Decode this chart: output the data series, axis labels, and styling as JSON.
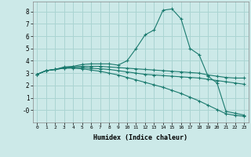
{
  "xlabel": "Humidex (Indice chaleur)",
  "xlim": [
    -0.5,
    23.5
  ],
  "ylim": [
    -1.0,
    8.8
  ],
  "yticks": [
    0,
    1,
    2,
    3,
    4,
    5,
    6,
    7,
    8
  ],
  "ytick_labels": [
    "-0",
    "1",
    "2",
    "3",
    "4",
    "5",
    "6",
    "7",
    "8"
  ],
  "xticks": [
    0,
    1,
    2,
    3,
    4,
    5,
    6,
    7,
    8,
    9,
    10,
    11,
    12,
    13,
    14,
    15,
    16,
    17,
    18,
    19,
    20,
    21,
    22,
    23
  ],
  "bg_color": "#cce9e8",
  "grid_color": "#aad4d2",
  "line_color": "#1a7a6e",
  "lines": [
    {
      "x": [
        0,
        1,
        2,
        3,
        4,
        5,
        6,
        7,
        8,
        9,
        10,
        11,
        12,
        13,
        14,
        15,
        16,
        17,
        18,
        19,
        20,
        21,
        22,
        23
      ],
      "y": [
        2.9,
        3.2,
        3.3,
        3.5,
        3.55,
        3.7,
        3.75,
        3.75,
        3.75,
        3.65,
        4.0,
        5.0,
        6.1,
        6.5,
        8.1,
        8.2,
        7.4,
        5.0,
        4.5,
        2.75,
        2.2,
        -0.1,
        -0.25,
        -0.4
      ]
    },
    {
      "x": [
        0,
        1,
        2,
        3,
        4,
        5,
        6,
        7,
        8,
        9,
        10,
        11,
        12,
        13,
        14,
        15,
        16,
        17,
        18,
        19,
        20,
        21,
        22,
        23
      ],
      "y": [
        2.9,
        3.2,
        3.3,
        3.45,
        3.5,
        3.55,
        3.55,
        3.55,
        3.5,
        3.45,
        3.4,
        3.35,
        3.3,
        3.25,
        3.2,
        3.15,
        3.1,
        3.05,
        3.0,
        2.85,
        2.75,
        2.65,
        2.6,
        2.6
      ]
    },
    {
      "x": [
        0,
        1,
        2,
        3,
        4,
        5,
        6,
        7,
        8,
        9,
        10,
        11,
        12,
        13,
        14,
        15,
        16,
        17,
        18,
        19,
        20,
        21,
        22,
        23
      ],
      "y": [
        2.9,
        3.2,
        3.3,
        3.4,
        3.45,
        3.45,
        3.4,
        3.35,
        3.3,
        3.2,
        3.1,
        3.0,
        2.9,
        2.85,
        2.8,
        2.75,
        2.7,
        2.65,
        2.6,
        2.5,
        2.4,
        2.3,
        2.2,
        2.1
      ]
    },
    {
      "x": [
        0,
        1,
        2,
        3,
        4,
        5,
        6,
        7,
        8,
        9,
        10,
        11,
        12,
        13,
        14,
        15,
        16,
        17,
        18,
        19,
        20,
        21,
        22,
        23
      ],
      "y": [
        2.9,
        3.2,
        3.3,
        3.4,
        3.4,
        3.35,
        3.25,
        3.15,
        3.0,
        2.85,
        2.65,
        2.45,
        2.25,
        2.05,
        1.85,
        1.6,
        1.35,
        1.05,
        0.75,
        0.4,
        0.05,
        -0.3,
        -0.42,
        -0.5
      ]
    }
  ]
}
